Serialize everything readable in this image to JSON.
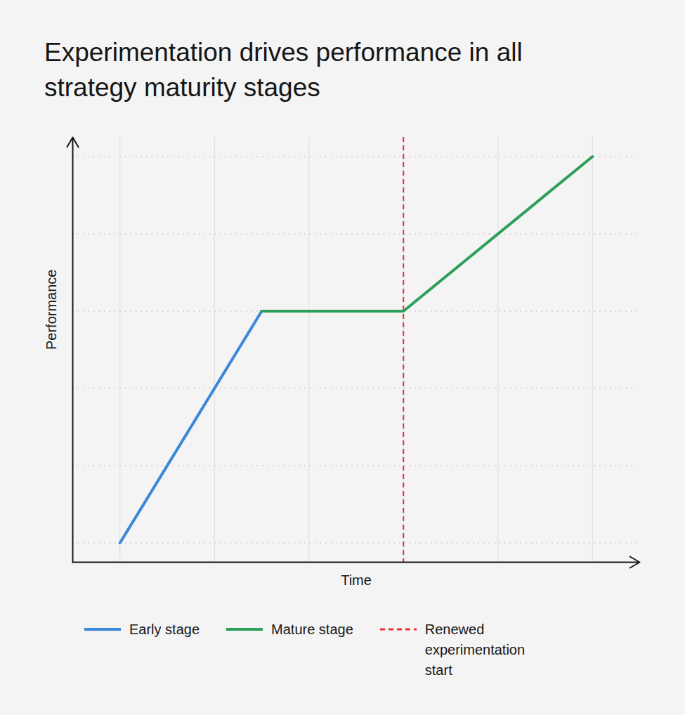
{
  "chart_data": {
    "type": "line",
    "title": "Experimentation drives performance in all strategy maturity stages",
    "x_label": "Time",
    "y_label": "Performance",
    "xlim": [
      -0.5,
      5.5
    ],
    "ylim": [
      -0.25,
      5.25
    ],
    "xticks": [
      0,
      1,
      2,
      3,
      4,
      5
    ],
    "yticks": [
      0,
      1,
      2,
      3,
      4,
      5
    ],
    "grid": true,
    "tick_labels": false,
    "series": [
      {
        "name": "Early stage",
        "color": "#3b88d8",
        "line_style": "solid",
        "x": [
          0,
          1.5
        ],
        "values": [
          0,
          3
        ]
      },
      {
        "name": "Mature stage",
        "color": "#2ca05a",
        "line_style": "solid",
        "x": [
          1.5,
          3,
          5
        ],
        "values": [
          3,
          3,
          5
        ]
      }
    ],
    "vlines": [
      {
        "name": "Renewed experimentation start",
        "x": 3,
        "color": "#e8303a",
        "line_style": "dashed"
      }
    ]
  }
}
